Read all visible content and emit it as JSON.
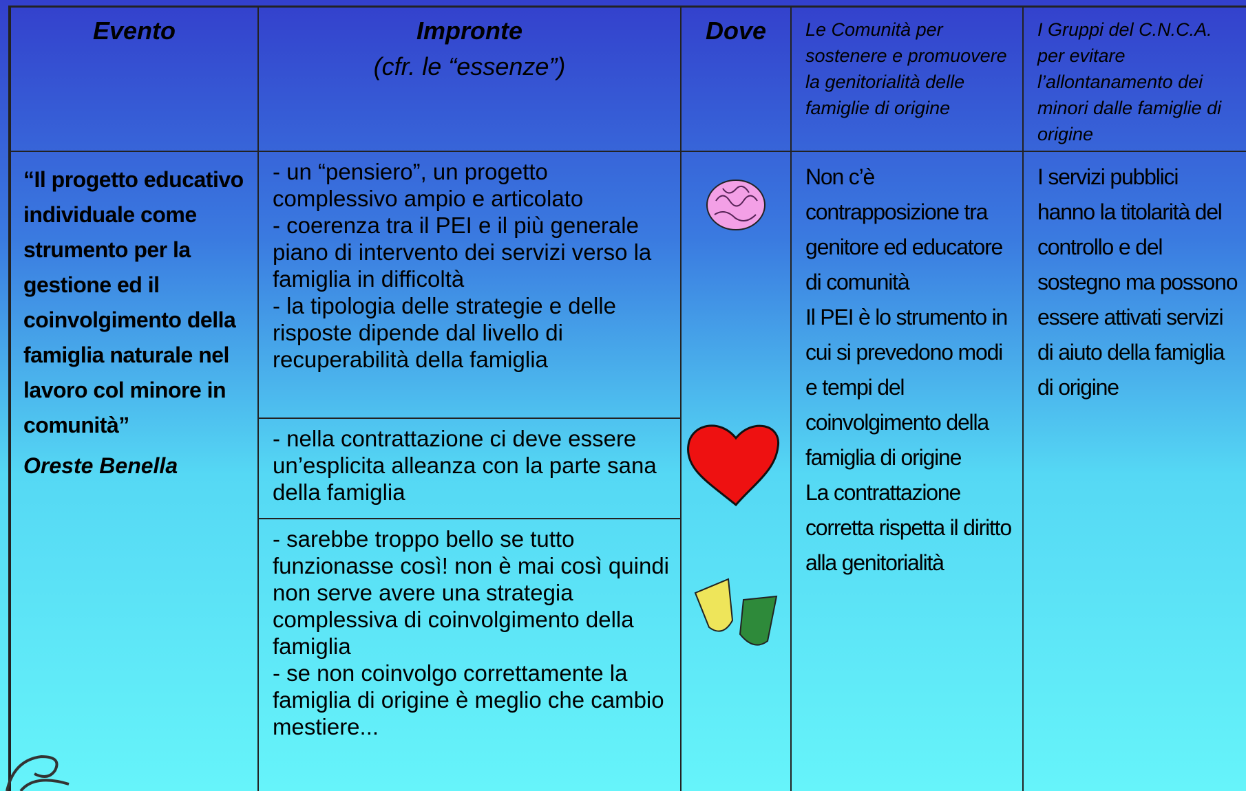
{
  "header": {
    "evento": "Evento",
    "impronte": "Impronte",
    "impronte_note": "(cfr. le “essenze”)",
    "dove": "Dove",
    "comunita": "Le Comunità per sostenere e promuovere la genitorialità delle famiglie di origine",
    "gruppi": "I Gruppi del C.N.C.A. per evitare l’allontanamento dei minori dalle famiglie di origine"
  },
  "row": {
    "evento_title": "“Il progetto educativo individuale come strumento per la gestione ed il coinvolgimento della famiglia naturale nel lavoro col minore in comunità”",
    "evento_author": "Oreste Benella",
    "impronte": [
      [
        "- un “pensiero”, un progetto complessivo ampio e articolato",
        "- coerenza tra il PEI e il più generale piano di intervento dei servizi verso la famiglia in difficoltà",
        "- la tipologia delle strategie e delle risposte dipende dal livello di recuperabilità della famiglia"
      ],
      [
        "- nella contrattazione ci deve essere un’esplicita alleanza con la parte sana della famiglia"
      ],
      [
        "- sarebbe troppo bello se tutto funzionasse così! non è mai così quindi non serve avere una strategia complessiva di coinvolgimento della famiglia",
        "- se non coinvolgo correttamente la famiglia di origine è meglio che cambio mestiere..."
      ]
    ],
    "comunita": [
      "Non c’è contrapposizione tra genitore ed educatore di comunità",
      "Il PEI è lo strumento in cui si prevedono modi e tempi del coinvolgimento della famiglia di origine",
      "La contrattazione corretta rispetta il diritto alla genitorialità"
    ],
    "gruppi": "I servizi pubblici hanno la titolarità del controllo e del sostegno ma possono essere attivati servizi di aiuto della famiglia di origine"
  }
}
